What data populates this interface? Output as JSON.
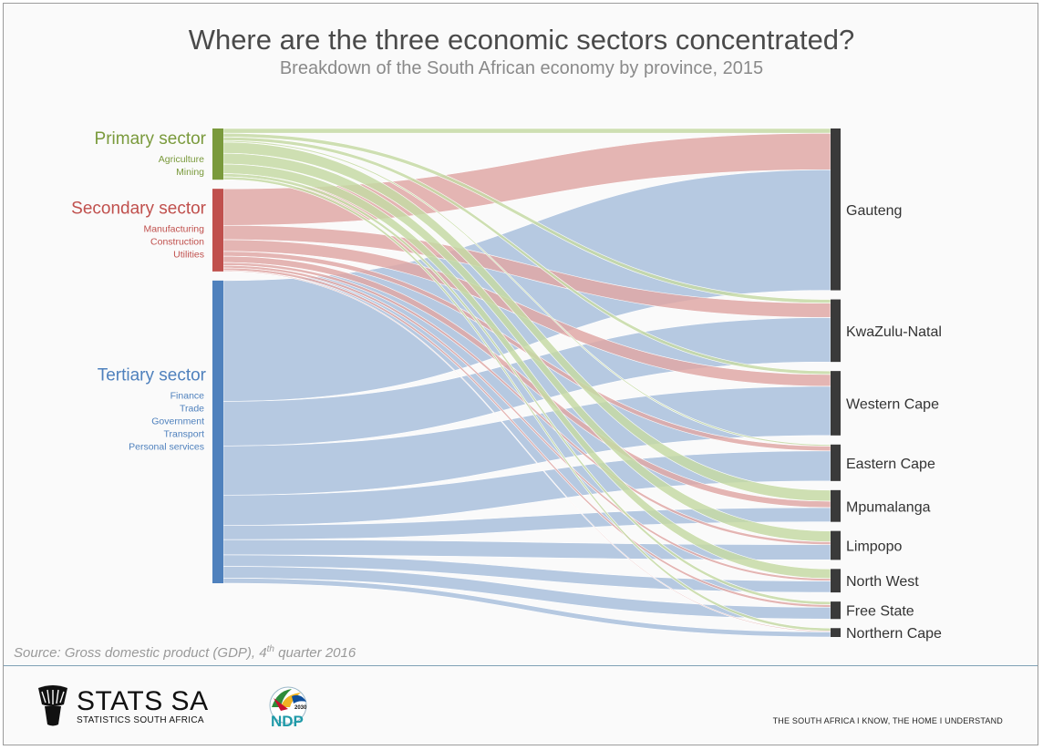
{
  "header": {
    "title": "Where are the three economic sectors concentrated?",
    "subtitle": "Breakdown of the South African economy by province, 2015"
  },
  "footer": {
    "source_text": "Source: Gross domestic product (GDP), 4",
    "source_sup": "th",
    "source_tail": " quarter 2016",
    "logo_main": "STATS SA",
    "logo_sub": "STATISTICS SOUTH AFRICA",
    "ndp_year": "2030",
    "ndp_text": "NDP",
    "tagline": "THE SOUTH AFRICA I KNOW, THE HOME I UNDERSTAND"
  },
  "colors": {
    "primary": "#7a9a3c",
    "primary_flow": "#c6d9a4",
    "secondary": "#c0504d",
    "secondary_flow": "#dfa8a6",
    "tertiary": "#4f81bd",
    "tertiary_flow": "#a9bfdc",
    "province_node": "#3a3a3a"
  },
  "chart_data": {
    "type": "sankey",
    "title": "Where are the three economic sectors concentrated?",
    "subtitle": "Breakdown of the South African economy by province, 2015",
    "sources": [
      {
        "name": "Primary sector",
        "items": [
          "Agriculture",
          "Mining"
        ]
      },
      {
        "name": "Secondary sector",
        "items": [
          "Manufacturing",
          "Construction",
          "Utilities"
        ]
      },
      {
        "name": "Tertiary sector",
        "items": [
          "Finance",
          "Trade",
          "Government",
          "Transport",
          "Personal services"
        ]
      }
    ],
    "targets": [
      "Gauteng",
      "KwaZulu-Natal",
      "Western Cape",
      "Eastern Cape",
      "Mpumalanga",
      "Limpopo",
      "North West",
      "Free State",
      "Northern Cape"
    ],
    "flows": [
      {
        "source": "Primary sector",
        "target": "Gauteng",
        "value": 1.5
      },
      {
        "source": "Primary sector",
        "target": "KwaZulu-Natal",
        "value": 1.2
      },
      {
        "source": "Primary sector",
        "target": "Western Cape",
        "value": 1.1
      },
      {
        "source": "Primary sector",
        "target": "Eastern Cape",
        "value": 0.5
      },
      {
        "source": "Primary sector",
        "target": "Mpumalanga",
        "value": 3.5
      },
      {
        "source": "Primary sector",
        "target": "Limpopo",
        "value": 3.4
      },
      {
        "source": "Primary sector",
        "target": "North West",
        "value": 3.0
      },
      {
        "source": "Primary sector",
        "target": "Free State",
        "value": 1.0
      },
      {
        "source": "Primary sector",
        "target": "Northern Cape",
        "value": 0.9
      },
      {
        "source": "Secondary sector",
        "target": "Gauteng",
        "value": 11.5
      },
      {
        "source": "Secondary sector",
        "target": "KwaZulu-Natal",
        "value": 4.5
      },
      {
        "source": "Secondary sector",
        "target": "Western Cape",
        "value": 3.7
      },
      {
        "source": "Secondary sector",
        "target": "Eastern Cape",
        "value": 1.5
      },
      {
        "source": "Secondary sector",
        "target": "Mpumalanga",
        "value": 2.0
      },
      {
        "source": "Secondary sector",
        "target": "Limpopo",
        "value": 0.9
      },
      {
        "source": "Secondary sector",
        "target": "North West",
        "value": 0.8
      },
      {
        "source": "Secondary sector",
        "target": "Free State",
        "value": 0.8
      },
      {
        "source": "Secondary sector",
        "target": "Northern Cape",
        "value": 0.3
      },
      {
        "source": "Tertiary sector",
        "target": "Gauteng",
        "value": 38.0
      },
      {
        "source": "Tertiary sector",
        "target": "KwaZulu-Natal",
        "value": 14.0
      },
      {
        "source": "Tertiary sector",
        "target": "Western Cape",
        "value": 15.5
      },
      {
        "source": "Tertiary sector",
        "target": "Eastern Cape",
        "value": 9.5
      },
      {
        "source": "Tertiary sector",
        "target": "Mpumalanga",
        "value": 4.5
      },
      {
        "source": "Tertiary sector",
        "target": "Limpopo",
        "value": 4.8
      },
      {
        "source": "Tertiary sector",
        "target": "North West",
        "value": 3.6
      },
      {
        "source": "Tertiary sector",
        "target": "Free State",
        "value": 3.7
      },
      {
        "source": "Tertiary sector",
        "target": "Northern Cape",
        "value": 1.6
      }
    ]
  }
}
